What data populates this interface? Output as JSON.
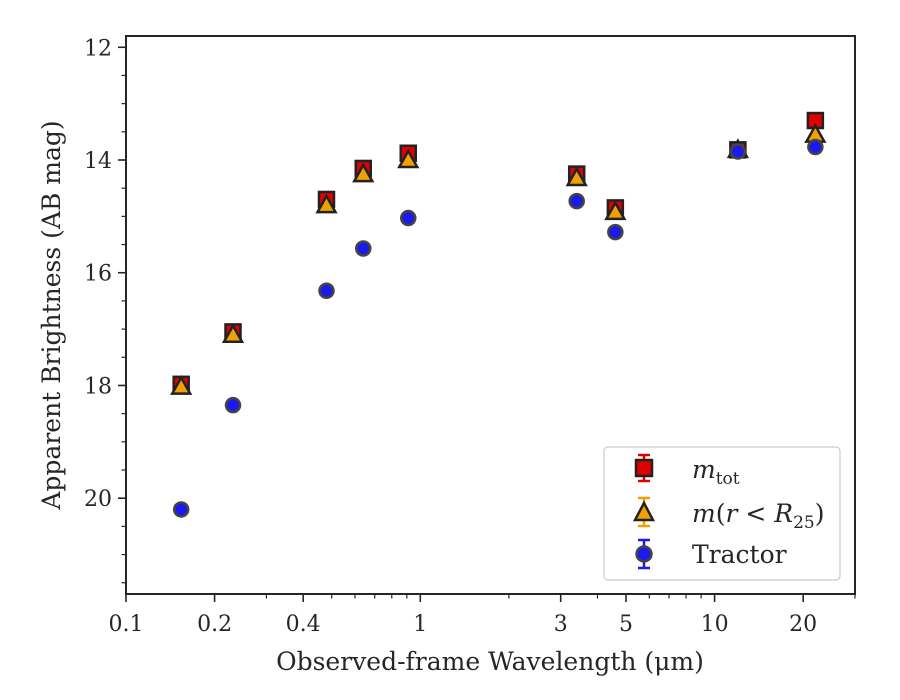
{
  "chart_data": {
    "type": "scatter",
    "xlabel": "Observed-frame Wavelength (μm)",
    "ylabel": "Apparent Brightness (AB mag)",
    "xscale": "log",
    "xlim": [
      0.1,
      30
    ],
    "ylim": [
      21.7,
      11.8
    ],
    "y_inverted": true,
    "x_major_ticks": [
      {
        "v": 0.1,
        "label": "0.1"
      },
      {
        "v": 0.2,
        "label": "0.2"
      },
      {
        "v": 0.4,
        "label": "0.4"
      },
      {
        "v": 1,
        "label": "1"
      },
      {
        "v": 3,
        "label": "3"
      },
      {
        "v": 5,
        "label": "5"
      },
      {
        "v": 10,
        "label": "10"
      },
      {
        "v": 20,
        "label": "20"
      }
    ],
    "x_minor_ticks": [
      0.3,
      0.5,
      0.6,
      0.7,
      0.8,
      0.9,
      2,
      4,
      6,
      7,
      8,
      9,
      30
    ],
    "y_major_ticks": [
      {
        "v": 12,
        "label": "12"
      },
      {
        "v": 14,
        "label": "14"
      },
      {
        "v": 16,
        "label": "16"
      },
      {
        "v": 18,
        "label": "18"
      },
      {
        "v": 20,
        "label": "20"
      }
    ],
    "y_minor_ticks": [
      12.5,
      13,
      13.5,
      14.5,
      15,
      15.5,
      16.5,
      17,
      17.5,
      18.5,
      19,
      19.5,
      20.5,
      21,
      21.5
    ],
    "legend_position": "lower-right",
    "grid": false,
    "series": [
      {
        "name": "m_tot",
        "legend_label": "mtot",
        "marker": "square",
        "color": "#e00000",
        "edge_color": "#222222",
        "x": [
          0.154,
          0.231,
          0.48,
          0.64,
          0.91,
          3.4,
          4.6,
          12,
          22
        ],
        "y": [
          17.98,
          17.05,
          14.7,
          14.15,
          13.88,
          14.25,
          14.85,
          13.82,
          13.3
        ]
      },
      {
        "name": "m(r < R25)",
        "legend_label": "m(r<R25)",
        "marker": "triangle",
        "color": "#f0a000",
        "edge_color": "#222222",
        "x": [
          0.154,
          0.231,
          0.48,
          0.64,
          0.91,
          3.4,
          4.6,
          12,
          22
        ],
        "y": [
          18.02,
          17.1,
          14.8,
          14.25,
          14.0,
          14.32,
          14.92,
          13.82,
          13.55
        ]
      },
      {
        "name": "Tractor",
        "legend_label": "Tractor",
        "marker": "circle",
        "color": "#1a1aee",
        "edge_color": "#444444",
        "x": [
          0.154,
          0.231,
          0.48,
          0.64,
          0.91,
          3.4,
          4.6,
          12,
          22
        ],
        "y": [
          20.2,
          18.35,
          16.32,
          15.57,
          15.03,
          14.73,
          15.28,
          13.85,
          13.77
        ]
      }
    ]
  }
}
